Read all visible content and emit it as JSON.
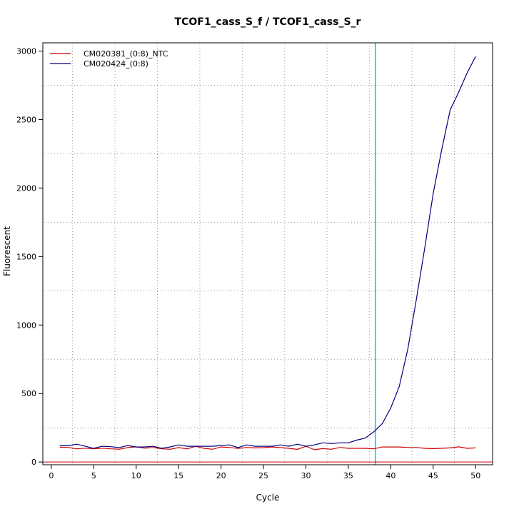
{
  "chart_data": {
    "type": "line",
    "title": "TCOF1_cass_S_f / TCOF1_cass_S_r",
    "xlabel": "Cycle",
    "ylabel": "Fluorescent",
    "xlim": [
      -1,
      52
    ],
    "ylim": [
      -20,
      3060
    ],
    "x_ticks": [
      0,
      5,
      10,
      15,
      20,
      25,
      30,
      35,
      40,
      45,
      50
    ],
    "y_ticks": [
      0,
      500,
      1000,
      1500,
      2000,
      2500,
      3000
    ],
    "grid": true,
    "grid_style": "dotted",
    "legend_position": "top-left",
    "threshold_x": 38.2,
    "threshold_color": "#00e5ee",
    "baseline_y": 0,
    "baseline_color": "#cc0000",
    "x": [
      1,
      2,
      3,
      4,
      5,
      6,
      7,
      8,
      9,
      10,
      11,
      12,
      13,
      14,
      15,
      16,
      17,
      18,
      19,
      20,
      21,
      22,
      23,
      24,
      25,
      26,
      27,
      28,
      29,
      30,
      31,
      32,
      33,
      34,
      35,
      36,
      37,
      38,
      39,
      40,
      41,
      42,
      43,
      44,
      45,
      46,
      47,
      48,
      49,
      50
    ],
    "series": [
      {
        "name": "CM020381_(0:8)_NTC",
        "color": "#cc0000",
        "values": [
          108,
          106,
          96,
          101,
          96,
          101,
          96,
          93,
          105,
          111,
          101,
          106,
          96,
          93,
          105,
          96,
          115,
          100,
          93,
          110,
          106,
          99,
          106,
          103,
          105,
          110,
          105,
          100,
          92,
          115,
          90,
          98,
          93,
          106,
          100,
          100,
          100,
          96,
          110,
          110,
          110,
          106,
          106,
          100,
          98,
          100,
          103,
          111,
          100,
          103
        ]
      },
      {
        "name": "CM020424_(0:8)",
        "color": "#000080",
        "values": [
          120,
          120,
          130,
          115,
          100,
          115,
          112,
          105,
          120,
          110,
          110,
          115,
          100,
          110,
          125,
          115,
          115,
          115,
          115,
          120,
          125,
          105,
          125,
          115,
          115,
          115,
          125,
          115,
          130,
          115,
          125,
          140,
          135,
          140,
          140,
          160,
          175,
          220,
          280,
          395,
          550,
          820,
          1180,
          1560,
          1960,
          2280,
          2570,
          2700,
          2840,
          2960
        ]
      }
    ]
  }
}
